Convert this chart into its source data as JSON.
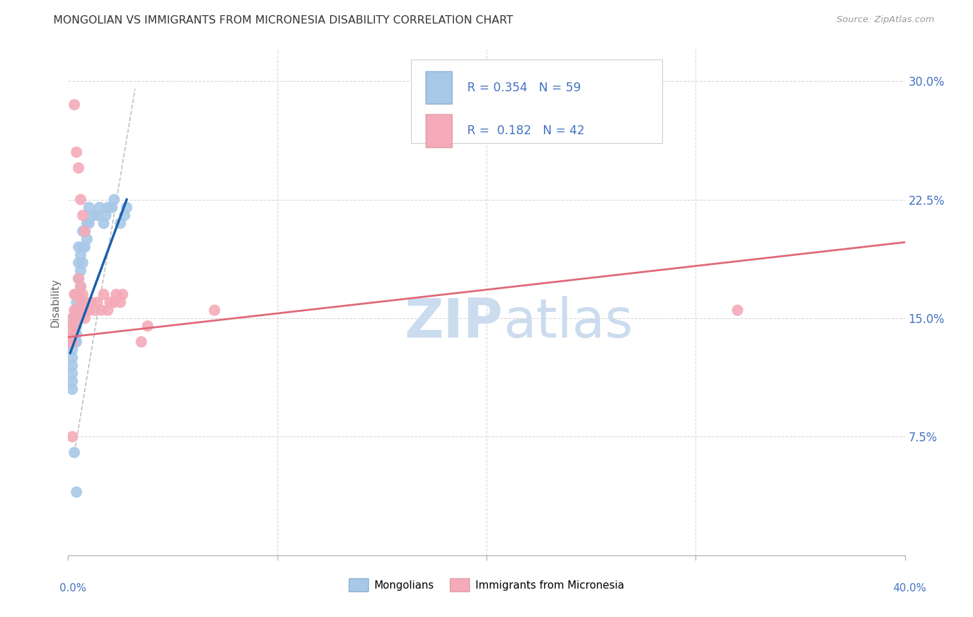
{
  "title": "MONGOLIAN VS IMMIGRANTS FROM MICRONESIA DISABILITY CORRELATION CHART",
  "source": "Source: ZipAtlas.com",
  "ylabel": "Disability",
  "ytick_labels": [
    "7.5%",
    "15.0%",
    "22.5%",
    "30.0%"
  ],
  "ytick_values": [
    0.075,
    0.15,
    0.225,
    0.3
  ],
  "xlim": [
    0.0,
    0.4
  ],
  "ylim": [
    0.0,
    0.32
  ],
  "legend_r1": "R = 0.354",
  "legend_n1": "N = 59",
  "legend_r2": "R = 0.182",
  "legend_n2": "N = 42",
  "mongolian_color": "#a8c8e8",
  "micronesia_color": "#f4aab8",
  "mongolian_line_color": "#1a5faa",
  "micronesia_line_color": "#e06878",
  "diagonal_line_color": "#b0b0b0",
  "background_color": "#ffffff",
  "watermark_color": "#ccdcef",
  "legend_text_color": "#4472c4",
  "title_color": "#333333",
  "grid_color": "#d8d8d8",
  "mongolian_x": [
    0.001,
    0.001,
    0.001,
    0.001,
    0.001,
    0.001,
    0.001,
    0.001,
    0.001,
    0.001,
    0.002,
    0.002,
    0.002,
    0.002,
    0.002,
    0.002,
    0.002,
    0.003,
    0.003,
    0.003,
    0.003,
    0.003,
    0.003,
    0.004,
    0.004,
    0.004,
    0.004,
    0.004,
    0.004,
    0.005,
    0.005,
    0.005,
    0.005,
    0.005,
    0.006,
    0.006,
    0.006,
    0.007,
    0.007,
    0.007,
    0.008,
    0.008,
    0.009,
    0.009,
    0.01,
    0.01,
    0.012,
    0.014,
    0.015,
    0.017,
    0.018,
    0.019,
    0.021,
    0.022,
    0.025,
    0.027,
    0.028,
    0.003,
    0.004
  ],
  "mongolian_y": [
    0.135,
    0.135,
    0.135,
    0.135,
    0.135,
    0.135,
    0.135,
    0.135,
    0.135,
    0.135,
    0.135,
    0.13,
    0.125,
    0.12,
    0.115,
    0.11,
    0.105,
    0.135,
    0.135,
    0.135,
    0.14,
    0.145,
    0.15,
    0.135,
    0.14,
    0.145,
    0.15,
    0.16,
    0.165,
    0.155,
    0.165,
    0.175,
    0.185,
    0.195,
    0.17,
    0.18,
    0.19,
    0.185,
    0.195,
    0.205,
    0.195,
    0.205,
    0.2,
    0.21,
    0.21,
    0.22,
    0.215,
    0.215,
    0.22,
    0.21,
    0.215,
    0.22,
    0.22,
    0.225,
    0.21,
    0.215,
    0.22,
    0.065,
    0.04
  ],
  "micronesia_x": [
    0.001,
    0.001,
    0.001,
    0.001,
    0.001,
    0.002,
    0.002,
    0.002,
    0.002,
    0.003,
    0.003,
    0.003,
    0.004,
    0.004,
    0.004,
    0.005,
    0.005,
    0.005,
    0.006,
    0.006,
    0.007,
    0.007,
    0.008,
    0.008,
    0.009,
    0.01,
    0.011,
    0.013,
    0.014,
    0.016,
    0.017,
    0.019,
    0.02,
    0.022,
    0.023,
    0.025,
    0.026,
    0.035,
    0.038,
    0.07,
    0.32,
    0.002
  ],
  "micronesia_y": [
    0.135,
    0.135,
    0.135,
    0.14,
    0.145,
    0.135,
    0.14,
    0.145,
    0.15,
    0.145,
    0.155,
    0.165,
    0.15,
    0.155,
    0.165,
    0.155,
    0.165,
    0.175,
    0.16,
    0.17,
    0.155,
    0.165,
    0.15,
    0.16,
    0.155,
    0.155,
    0.16,
    0.155,
    0.16,
    0.155,
    0.165,
    0.155,
    0.16,
    0.16,
    0.165,
    0.16,
    0.165,
    0.135,
    0.145,
    0.155,
    0.155,
    0.075
  ],
  "micronesia_upper_x": [
    0.003,
    0.004,
    0.005,
    0.006,
    0.007,
    0.008
  ],
  "micronesia_upper_y": [
    0.285,
    0.255,
    0.245,
    0.225,
    0.215,
    0.205
  ],
  "mong_line_x": [
    0.001,
    0.028
  ],
  "mong_line_y": [
    0.128,
    0.225
  ],
  "micro_line_x": [
    0.0,
    0.4
  ],
  "micro_line_y": [
    0.138,
    0.198
  ],
  "diag_line_x": [
    0.003,
    0.032
  ],
  "diag_line_y": [
    0.065,
    0.295
  ]
}
